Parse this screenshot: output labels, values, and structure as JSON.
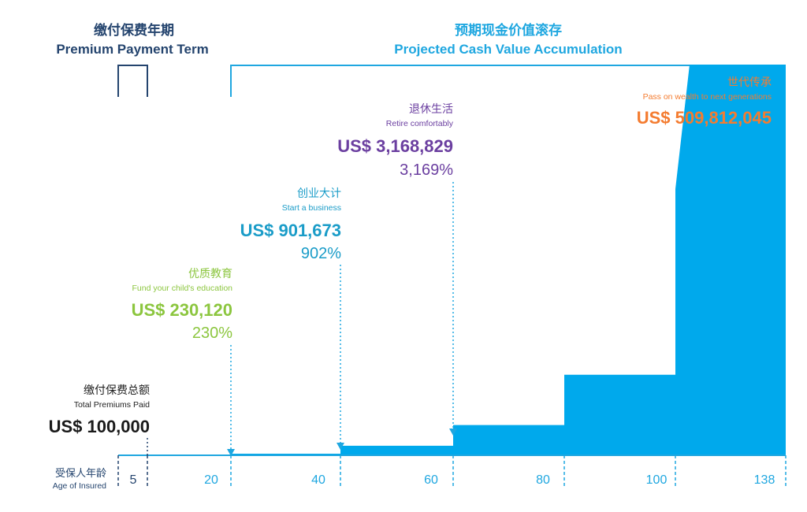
{
  "headers": {
    "premium_term_cn": "缴付保费年期",
    "premium_term_en": "Premium Payment Term",
    "cash_value_cn": "预期现金价值滚存",
    "cash_value_en": "Projected Cash Value Accumulation"
  },
  "total_premiums": {
    "cn": "缴付保费总额",
    "en": "Total Premiums Paid",
    "amount": "US$ 100,000"
  },
  "axis": {
    "label_cn": "受保人年龄",
    "label_en": "Age of Insured",
    "ticks": [
      "5",
      "20",
      "40",
      "60",
      "80",
      "100",
      "138"
    ]
  },
  "annotations": [
    {
      "cn": "优质教育",
      "en": "Fund your child's education",
      "amount": "US$ 230,120",
      "pct": "230%",
      "color": "#8cc63f"
    },
    {
      "cn": "创业大计",
      "en": "Start a business",
      "amount": "US$ 901,673",
      "pct": "902%",
      "color": "#1a9cc8"
    },
    {
      "cn": "退休生活",
      "en": "Retire comfortably",
      "amount": "US$ 3,168,829",
      "pct": "3,169%",
      "color": "#6b3fa0"
    },
    {
      "cn": "世代传承",
      "en": "Pass on wealth to next generations",
      "amount": "US$ 509,812,045",
      "pct": "",
      "color": "#f47c30"
    }
  ],
  "colors": {
    "bar": "#00a9ec",
    "axis": "#1fa7e0",
    "navy": "#24446e",
    "black": "#1a1a1a"
  },
  "chart_data": {
    "type": "area",
    "title": "Projected Cash Value Accumulation",
    "xlabel": "Age of Insured",
    "ylabel": "",
    "x": [
      5,
      20,
      40,
      60,
      80,
      100,
      138
    ],
    "series": [
      {
        "name": "Projected Cash Value Accumulation",
        "values": [
          0,
          230120,
          901673,
          3168829,
          14000000,
          120000000,
          509812045
        ]
      }
    ],
    "premium_payment_term": [
      0,
      5
    ],
    "total_premiums_paid": 100000,
    "grid": false,
    "legend": "none"
  }
}
